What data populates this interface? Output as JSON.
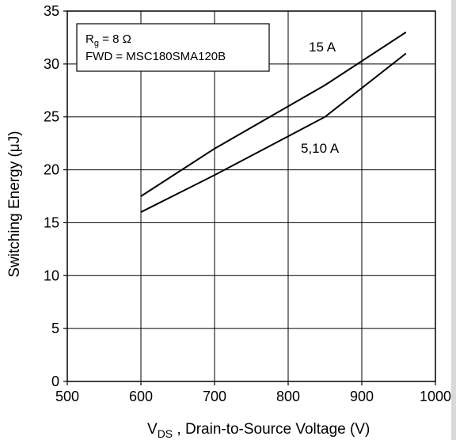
{
  "chart_data": {
    "type": "line",
    "xlabel": {
      "main": "V",
      "sub": "DS",
      "rest": " , Drain-to-Source Voltage (V)"
    },
    "ylabel": "Switching Energy (μJ)",
    "xlim": [
      500,
      1000
    ],
    "ylim": [
      0,
      35
    ],
    "xticks": [
      500,
      600,
      700,
      800,
      900,
      1000
    ],
    "yticks": [
      0,
      5,
      10,
      15,
      20,
      25,
      30,
      35
    ],
    "grid": true,
    "legend_box": {
      "line1_main": "R",
      "line1_sub": "g",
      "line1_rest": " = 8 Ω",
      "line2": "FWD = MSC180SMA120B",
      "placement": "top-left"
    },
    "series": [
      {
        "label": "15 A",
        "points": [
          [
            600,
            17.5
          ],
          [
            700,
            22.0
          ],
          [
            850,
            28.0
          ],
          [
            960,
            33.0
          ]
        ]
      },
      {
        "label": "5,10 A",
        "points": [
          [
            600,
            16.0
          ],
          [
            700,
            19.5
          ],
          [
            850,
            25.0
          ],
          [
            960,
            31.0
          ]
        ]
      }
    ]
  }
}
